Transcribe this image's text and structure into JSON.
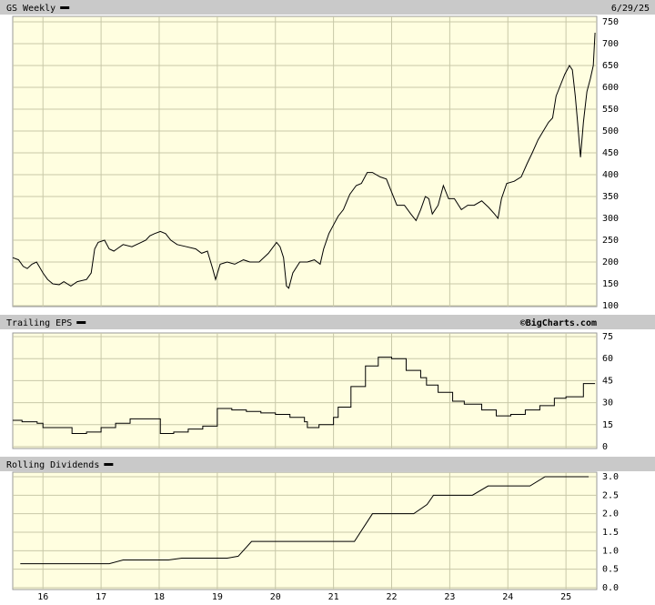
{
  "chart_data": [
    {
      "type": "line",
      "title": "GS Weekly",
      "date": "6/29/25",
      "color": "#000000",
      "grid": true,
      "xlim": [
        2015.48,
        2025.53
      ],
      "xticks": [
        2016,
        2017,
        2018,
        2019,
        2020,
        2021,
        2022,
        2023,
        2024,
        2025
      ],
      "ylim": [
        100,
        750
      ],
      "yticks": [
        100,
        150,
        200,
        250,
        300,
        350,
        400,
        450,
        500,
        550,
        600,
        650,
        700,
        750
      ],
      "x": [
        2015.48,
        2015.58,
        2015.66,
        2015.73,
        2015.81,
        2015.89,
        2016.0,
        2016.08,
        2016.17,
        2016.28,
        2016.36,
        2016.48,
        2016.59,
        2016.75,
        2016.83,
        2016.89,
        2016.95,
        2017.06,
        2017.14,
        2017.22,
        2017.38,
        2017.53,
        2017.69,
        2017.77,
        2017.84,
        2017.92,
        2018.02,
        2018.11,
        2018.2,
        2018.31,
        2018.47,
        2018.63,
        2018.73,
        2018.83,
        2018.92,
        2018.97,
        2019.05,
        2019.17,
        2019.3,
        2019.45,
        2019.56,
        2019.72,
        2019.88,
        2020.02,
        2020.08,
        2020.14,
        2020.19,
        2020.23,
        2020.3,
        2020.42,
        2020.55,
        2020.67,
        2020.77,
        2020.83,
        2020.92,
        2021.0,
        2021.08,
        2021.17,
        2021.28,
        2021.39,
        2021.48,
        2021.58,
        2021.67,
        2021.8,
        2021.91,
        2022.0,
        2022.09,
        2022.22,
        2022.33,
        2022.42,
        2022.5,
        2022.58,
        2022.64,
        2022.7,
        2022.8,
        2022.89,
        2022.98,
        2023.08,
        2023.2,
        2023.31,
        2023.42,
        2023.55,
        2023.67,
        2023.77,
        2023.83,
        2023.89,
        2023.98,
        2024.11,
        2024.23,
        2024.33,
        2024.42,
        2024.52,
        2024.61,
        2024.7,
        2024.77,
        2024.83,
        2024.89,
        2024.98,
        2025.06,
        2025.11,
        2025.16,
        2025.2,
        2025.25,
        2025.3,
        2025.36,
        2025.42,
        2025.47,
        2025.5
      ],
      "values": [
        210,
        205,
        190,
        185,
        195,
        200,
        175,
        160,
        150,
        148,
        155,
        145,
        155,
        160,
        175,
        230,
        245,
        250,
        230,
        225,
        240,
        235,
        245,
        250,
        260,
        265,
        270,
        265,
        250,
        240,
        235,
        230,
        220,
        225,
        185,
        160,
        195,
        200,
        195,
        205,
        200,
        200,
        220,
        245,
        235,
        210,
        145,
        140,
        175,
        200,
        200,
        205,
        195,
        230,
        265,
        285,
        305,
        320,
        355,
        375,
        380,
        405,
        405,
        395,
        390,
        360,
        330,
        330,
        310,
        295,
        320,
        350,
        345,
        310,
        330,
        375,
        345,
        345,
        320,
        330,
        330,
        340,
        325,
        310,
        300,
        345,
        380,
        385,
        395,
        425,
        450,
        480,
        500,
        520,
        530,
        580,
        600,
        630,
        650,
        640,
        580,
        520,
        440,
        520,
        590,
        620,
        650,
        725
      ]
    },
    {
      "type": "step",
      "title": "Trailing EPS",
      "source": "©BigCharts.com",
      "color": "#000000",
      "grid": true,
      "xlim": [
        2015.48,
        2025.53
      ],
      "xticks": [
        2016,
        2017,
        2018,
        2019,
        2020,
        2021,
        2022,
        2023,
        2024,
        2025
      ],
      "ylim": [
        0,
        75
      ],
      "yticks": [
        0,
        15,
        30,
        45,
        60,
        75
      ],
      "x": [
        2015.48,
        2015.64,
        2015.9,
        2016.0,
        2016.5,
        2016.75,
        2017.0,
        2017.25,
        2017.5,
        2018.02,
        2018.25,
        2018.5,
        2018.75,
        2019.0,
        2019.25,
        2019.5,
        2019.75,
        2020.0,
        2020.25,
        2020.5,
        2020.55,
        2020.75,
        2021.0,
        2021.08,
        2021.3,
        2021.55,
        2021.77,
        2022.0,
        2022.25,
        2022.5,
        2022.6,
        2022.8,
        2023.05,
        2023.25,
        2023.55,
        2023.8,
        2024.05,
        2024.3,
        2024.55,
        2024.8,
        2025.0,
        2025.3,
        2025.5
      ],
      "values": [
        18,
        17,
        16,
        13,
        9,
        10,
        13,
        16,
        19,
        9,
        10,
        12,
        14,
        26,
        25,
        24,
        23,
        22,
        20,
        17,
        13,
        15,
        20,
        27,
        41,
        55,
        61,
        60,
        52,
        47,
        42,
        37,
        31,
        29,
        25,
        21,
        22,
        25,
        28,
        33,
        34,
        43,
        43
      ]
    },
    {
      "type": "line",
      "title": "Rolling Dividends",
      "color": "#000000",
      "grid": true,
      "xlim": [
        2015.48,
        2025.53
      ],
      "xticks": [
        {
          "value": 2016,
          "label": "16"
        },
        {
          "value": 2017,
          "label": "17"
        },
        {
          "value": 2018,
          "label": "18"
        },
        {
          "value": 2019,
          "label": "19"
        },
        {
          "value": 2020,
          "label": "20"
        },
        {
          "value": 2021,
          "label": "21"
        },
        {
          "value": 2022,
          "label": "22"
        },
        {
          "value": 2023,
          "label": "23"
        },
        {
          "value": 2024,
          "label": "24"
        },
        {
          "value": 2025,
          "label": "25"
        }
      ],
      "ylim": [
        0,
        3
      ],
      "yticks": [
        {
          "value": 0,
          "label": "0.0"
        },
        {
          "value": 0.5,
          "label": "0.5"
        },
        {
          "value": 1,
          "label": "1.0"
        },
        {
          "value": 1.5,
          "label": "1.5"
        },
        {
          "value": 2,
          "label": "2.0"
        },
        {
          "value": 2.5,
          "label": "2.5"
        },
        {
          "value": 3,
          "label": "3.0"
        }
      ],
      "x": [
        2015.61,
        2017.14,
        2017.38,
        2018.16,
        2018.39,
        2019.17,
        2019.36,
        2019.59,
        2021.36,
        2021.67,
        2022.38,
        2022.61,
        2022.72,
        2023.39,
        2023.66,
        2024.38,
        2024.64,
        2025.39
      ],
      "values": [
        0.65,
        0.65,
        0.75,
        0.75,
        0.8,
        0.8,
        0.85,
        1.25,
        1.25,
        2.0,
        2.0,
        2.25,
        2.5,
        2.5,
        2.75,
        2.75,
        3.0,
        3.0
      ]
    }
  ]
}
